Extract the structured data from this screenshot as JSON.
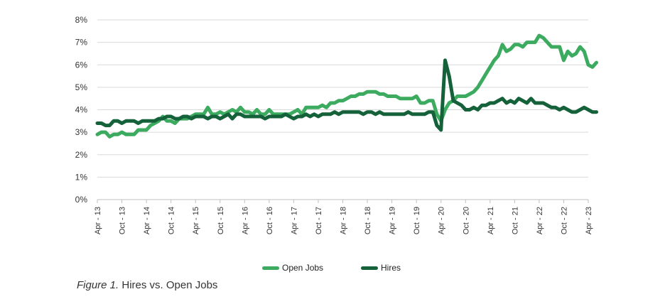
{
  "caption": {
    "figure_label": "Figure 1.",
    "title": "Hires vs. Open Jobs"
  },
  "chart_data": {
    "type": "line",
    "title": "Hires vs. Open Jobs",
    "xlabel": "",
    "ylabel": "",
    "ylim": [
      0,
      8
    ],
    "y_ticks": [
      "0%",
      "1%",
      "2%",
      "3%",
      "4%",
      "5%",
      "6%",
      "7%",
      "8%"
    ],
    "x_range": [
      "2013-04",
      "2023-04"
    ],
    "x_ticks": [
      "Apr - 13",
      "Oct - 13",
      "Apr - 14",
      "Oct - 14",
      "Apr - 15",
      "Oct - 15",
      "Apr - 16",
      "Oct - 16",
      "Apr - 17",
      "Oct - 17",
      "Apr - 18",
      "Oct - 18",
      "Apr - 19",
      "Oct - 19",
      "Apr - 20",
      "Oct - 20",
      "Apr - 21",
      "Oct - 21",
      "Apr - 22",
      "Oct - 22",
      "Apr - 23"
    ],
    "grid": "horizontal",
    "legend_position": "bottom",
    "series": [
      {
        "name": "Open Jobs",
        "color": "#3cab5f",
        "points": [
          [
            "2013-04",
            2.9
          ],
          [
            "2013-05",
            3.0
          ],
          [
            "2013-06",
            3.0
          ],
          [
            "2013-07",
            2.8
          ],
          [
            "2013-08",
            2.9
          ],
          [
            "2013-09",
            2.9
          ],
          [
            "2013-10",
            3.0
          ],
          [
            "2013-11",
            2.9
          ],
          [
            "2013-12",
            2.9
          ],
          [
            "2014-01",
            2.9
          ],
          [
            "2014-02",
            3.1
          ],
          [
            "2014-03",
            3.1
          ],
          [
            "2014-04",
            3.1
          ],
          [
            "2014-05",
            3.3
          ],
          [
            "2014-06",
            3.4
          ],
          [
            "2014-07",
            3.5
          ],
          [
            "2014-08",
            3.7
          ],
          [
            "2014-09",
            3.5
          ],
          [
            "2014-10",
            3.5
          ],
          [
            "2014-11",
            3.4
          ],
          [
            "2014-12",
            3.6
          ],
          [
            "2015-01",
            3.6
          ],
          [
            "2015-02",
            3.6
          ],
          [
            "2015-03",
            3.7
          ],
          [
            "2015-04",
            3.8
          ],
          [
            "2015-05",
            3.8
          ],
          [
            "2015-06",
            3.8
          ],
          [
            "2015-07",
            4.1
          ],
          [
            "2015-08",
            3.8
          ],
          [
            "2015-09",
            3.8
          ],
          [
            "2015-10",
            3.9
          ],
          [
            "2015-11",
            3.8
          ],
          [
            "2015-12",
            3.9
          ],
          [
            "2016-01",
            4.0
          ],
          [
            "2016-02",
            3.9
          ],
          [
            "2016-03",
            4.1
          ],
          [
            "2016-04",
            3.9
          ],
          [
            "2016-05",
            3.9
          ],
          [
            "2016-06",
            3.8
          ],
          [
            "2016-07",
            4.0
          ],
          [
            "2016-08",
            3.8
          ],
          [
            "2016-09",
            3.8
          ],
          [
            "2016-10",
            4.0
          ],
          [
            "2016-11",
            3.8
          ],
          [
            "2016-12",
            3.8
          ],
          [
            "2017-01",
            3.8
          ],
          [
            "2017-02",
            3.8
          ],
          [
            "2017-03",
            3.8
          ],
          [
            "2017-04",
            3.9
          ],
          [
            "2017-05",
            4.0
          ],
          [
            "2017-06",
            3.8
          ],
          [
            "2017-07",
            4.1
          ],
          [
            "2017-08",
            4.1
          ],
          [
            "2017-09",
            4.1
          ],
          [
            "2017-10",
            4.1
          ],
          [
            "2017-11",
            4.2
          ],
          [
            "2017-12",
            4.1
          ],
          [
            "2018-01",
            4.3
          ],
          [
            "2018-02",
            4.3
          ],
          [
            "2018-03",
            4.4
          ],
          [
            "2018-04",
            4.4
          ],
          [
            "2018-05",
            4.5
          ],
          [
            "2018-06",
            4.6
          ],
          [
            "2018-07",
            4.6
          ],
          [
            "2018-08",
            4.7
          ],
          [
            "2018-09",
            4.7
          ],
          [
            "2018-10",
            4.8
          ],
          [
            "2018-11",
            4.8
          ],
          [
            "2018-12",
            4.8
          ],
          [
            "2019-01",
            4.7
          ],
          [
            "2019-02",
            4.7
          ],
          [
            "2019-03",
            4.6
          ],
          [
            "2019-04",
            4.6
          ],
          [
            "2019-05",
            4.6
          ],
          [
            "2019-06",
            4.5
          ],
          [
            "2019-07",
            4.5
          ],
          [
            "2019-08",
            4.5
          ],
          [
            "2019-09",
            4.5
          ],
          [
            "2019-10",
            4.6
          ],
          [
            "2019-11",
            4.3
          ],
          [
            "2019-12",
            4.3
          ],
          [
            "2020-01",
            4.4
          ],
          [
            "2020-02",
            4.4
          ],
          [
            "2020-03",
            3.8
          ],
          [
            "2020-04",
            3.5
          ],
          [
            "2020-05",
            4.0
          ],
          [
            "2020-06",
            4.3
          ],
          [
            "2020-07",
            4.4
          ],
          [
            "2020-08",
            4.6
          ],
          [
            "2020-09",
            4.6
          ],
          [
            "2020-10",
            4.6
          ],
          [
            "2020-11",
            4.7
          ],
          [
            "2020-12",
            4.8
          ],
          [
            "2021-01",
            5.0
          ],
          [
            "2021-02",
            5.3
          ],
          [
            "2021-03",
            5.6
          ],
          [
            "2021-04",
            5.9
          ],
          [
            "2021-05",
            6.2
          ],
          [
            "2021-06",
            6.4
          ],
          [
            "2021-07",
            6.9
          ],
          [
            "2021-08",
            6.6
          ],
          [
            "2021-09",
            6.7
          ],
          [
            "2021-10",
            6.9
          ],
          [
            "2021-11",
            6.9
          ],
          [
            "2021-12",
            6.8
          ],
          [
            "2022-01",
            7.0
          ],
          [
            "2022-02",
            7.0
          ],
          [
            "2022-03",
            7.0
          ],
          [
            "2022-04",
            7.3
          ],
          [
            "2022-05",
            7.2
          ],
          [
            "2022-06",
            7.0
          ],
          [
            "2022-07",
            6.8
          ],
          [
            "2022-08",
            6.8
          ],
          [
            "2022-09",
            6.8
          ],
          [
            "2022-10",
            6.2
          ],
          [
            "2022-11",
            6.6
          ],
          [
            "2022-12",
            6.4
          ],
          [
            "2023-01",
            6.5
          ],
          [
            "2023-02",
            6.8
          ],
          [
            "2023-03",
            6.6
          ],
          [
            "2023-04",
            6.0
          ],
          [
            "2023-05",
            5.9
          ],
          [
            "2023-06",
            6.1
          ]
        ]
      },
      {
        "name": "Hires",
        "color": "#14613a",
        "points": [
          [
            "2013-04",
            3.4
          ],
          [
            "2013-05",
            3.4
          ],
          [
            "2013-06",
            3.3
          ],
          [
            "2013-07",
            3.3
          ],
          [
            "2013-08",
            3.5
          ],
          [
            "2013-09",
            3.5
          ],
          [
            "2013-10",
            3.4
          ],
          [
            "2013-11",
            3.5
          ],
          [
            "2013-12",
            3.5
          ],
          [
            "2014-01",
            3.5
          ],
          [
            "2014-02",
            3.4
          ],
          [
            "2014-03",
            3.5
          ],
          [
            "2014-04",
            3.5
          ],
          [
            "2014-05",
            3.5
          ],
          [
            "2014-06",
            3.5
          ],
          [
            "2014-07",
            3.6
          ],
          [
            "2014-08",
            3.6
          ],
          [
            "2014-09",
            3.7
          ],
          [
            "2014-10",
            3.7
          ],
          [
            "2014-11",
            3.6
          ],
          [
            "2014-12",
            3.6
          ],
          [
            "2015-01",
            3.7
          ],
          [
            "2015-02",
            3.7
          ],
          [
            "2015-03",
            3.6
          ],
          [
            "2015-04",
            3.7
          ],
          [
            "2015-05",
            3.7
          ],
          [
            "2015-06",
            3.7
          ],
          [
            "2015-07",
            3.6
          ],
          [
            "2015-08",
            3.7
          ],
          [
            "2015-09",
            3.7
          ],
          [
            "2015-10",
            3.6
          ],
          [
            "2015-11",
            3.7
          ],
          [
            "2015-12",
            3.8
          ],
          [
            "2016-01",
            3.6
          ],
          [
            "2016-02",
            3.8
          ],
          [
            "2016-03",
            3.8
          ],
          [
            "2016-04",
            3.7
          ],
          [
            "2016-05",
            3.7
          ],
          [
            "2016-06",
            3.7
          ],
          [
            "2016-07",
            3.7
          ],
          [
            "2016-08",
            3.7
          ],
          [
            "2016-09",
            3.6
          ],
          [
            "2016-10",
            3.7
          ],
          [
            "2016-11",
            3.7
          ],
          [
            "2016-12",
            3.7
          ],
          [
            "2017-01",
            3.7
          ],
          [
            "2017-02",
            3.8
          ],
          [
            "2017-03",
            3.7
          ],
          [
            "2017-04",
            3.6
          ],
          [
            "2017-05",
            3.7
          ],
          [
            "2017-06",
            3.7
          ],
          [
            "2017-07",
            3.8
          ],
          [
            "2017-08",
            3.7
          ],
          [
            "2017-09",
            3.8
          ],
          [
            "2017-10",
            3.7
          ],
          [
            "2017-11",
            3.8
          ],
          [
            "2017-12",
            3.8
          ],
          [
            "2018-01",
            3.8
          ],
          [
            "2018-02",
            3.9
          ],
          [
            "2018-03",
            3.8
          ],
          [
            "2018-04",
            3.9
          ],
          [
            "2018-05",
            3.9
          ],
          [
            "2018-06",
            3.9
          ],
          [
            "2018-07",
            3.9
          ],
          [
            "2018-08",
            3.9
          ],
          [
            "2018-09",
            3.8
          ],
          [
            "2018-10",
            3.9
          ],
          [
            "2018-11",
            3.9
          ],
          [
            "2018-12",
            3.8
          ],
          [
            "2019-01",
            3.9
          ],
          [
            "2019-02",
            3.8
          ],
          [
            "2019-03",
            3.8
          ],
          [
            "2019-04",
            3.8
          ],
          [
            "2019-05",
            3.8
          ],
          [
            "2019-06",
            3.8
          ],
          [
            "2019-07",
            3.8
          ],
          [
            "2019-08",
            3.9
          ],
          [
            "2019-09",
            3.8
          ],
          [
            "2019-10",
            3.8
          ],
          [
            "2019-11",
            3.8
          ],
          [
            "2019-12",
            3.8
          ],
          [
            "2020-01",
            3.9
          ],
          [
            "2020-02",
            3.9
          ],
          [
            "2020-03",
            3.3
          ],
          [
            "2020-04",
            3.1
          ],
          [
            "2020-05",
            6.2
          ],
          [
            "2020-06",
            5.5
          ],
          [
            "2020-07",
            4.4
          ],
          [
            "2020-08",
            4.3
          ],
          [
            "2020-09",
            4.2
          ],
          [
            "2020-10",
            4.0
          ],
          [
            "2020-11",
            4.0
          ],
          [
            "2020-12",
            4.1
          ],
          [
            "2021-01",
            4.0
          ],
          [
            "2021-02",
            4.2
          ],
          [
            "2021-03",
            4.2
          ],
          [
            "2021-04",
            4.3
          ],
          [
            "2021-05",
            4.3
          ],
          [
            "2021-06",
            4.4
          ],
          [
            "2021-07",
            4.5
          ],
          [
            "2021-08",
            4.3
          ],
          [
            "2021-09",
            4.4
          ],
          [
            "2021-10",
            4.3
          ],
          [
            "2021-11",
            4.5
          ],
          [
            "2021-12",
            4.4
          ],
          [
            "2022-01",
            4.3
          ],
          [
            "2022-02",
            4.5
          ],
          [
            "2022-03",
            4.3
          ],
          [
            "2022-04",
            4.3
          ],
          [
            "2022-05",
            4.3
          ],
          [
            "2022-06",
            4.2
          ],
          [
            "2022-07",
            4.1
          ],
          [
            "2022-08",
            4.1
          ],
          [
            "2022-09",
            4.0
          ],
          [
            "2022-10",
            4.1
          ],
          [
            "2022-11",
            4.0
          ],
          [
            "2022-12",
            3.9
          ],
          [
            "2023-01",
            3.9
          ],
          [
            "2023-02",
            4.0
          ],
          [
            "2023-03",
            4.1
          ],
          [
            "2023-04",
            4.0
          ],
          [
            "2023-05",
            3.9
          ],
          [
            "2023-06",
            3.9
          ]
        ]
      }
    ]
  }
}
